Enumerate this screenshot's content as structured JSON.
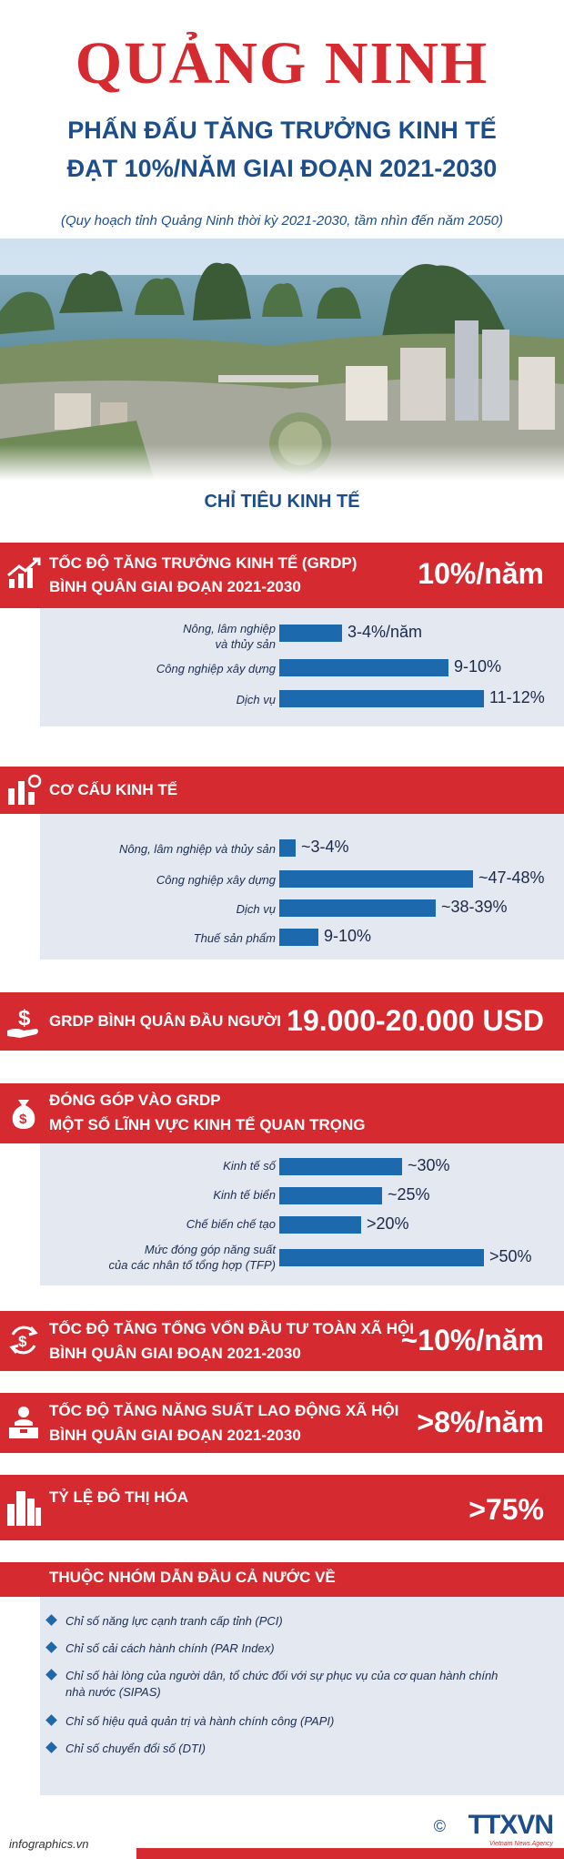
{
  "header": {
    "title": "QUẢNG NINH",
    "subtitle_line1": "PHẤN ĐẤU TĂNG TRƯỞNG KINH TẾ",
    "subtitle_line2": "ĐẠT 10%/NĂM GIAI ĐOẠN 2021-2030",
    "note": "(Quy hoạch tỉnh Quảng Ninh thời kỳ 2021-2030, tầm nhìn đến năm 2050)"
  },
  "section_title": "CHỈ TIÊU KINH TẾ",
  "grdp_growth": {
    "label_line1": "TỐC ĐỘ TĂNG TRƯỞNG KINH TẾ (GRDP)",
    "label_line2": "BÌNH QUÂN GIAI ĐOẠN 2021-2030",
    "value": "10%/năm",
    "icon": "growth-chart-icon",
    "rows": [
      {
        "label1": "Nông, lâm nghiệp",
        "label2": "và thủy sản",
        "value": "3-4%/năm",
        "level": 3.5
      },
      {
        "label1": "Công nghiệp xây dựng",
        "label2": "",
        "value": "9-10%",
        "level": 9.5
      },
      {
        "label1": "Dịch vụ",
        "label2": "",
        "value": "11-12%",
        "level": 11.5
      }
    ]
  },
  "structure": {
    "label": "CƠ CẤU KINH TẾ",
    "icon": "economy-structure-icon",
    "rows": [
      {
        "label": "Nông, lâm nghiệp và thủy sản",
        "value": "~3-4%",
        "level": 3.5
      },
      {
        "label": "Công nghiệp xây dựng",
        "value": "~47-48%",
        "level": 47.5
      },
      {
        "label": "Dịch vụ",
        "value": "~38-39%",
        "level": 38.5
      },
      {
        "label": "Thuế sản phẩm",
        "value": "9-10%",
        "level": 9.5
      }
    ]
  },
  "per_capita": {
    "label": "GRDP BÌNH QUÂN ĐẦU NGƯỜI",
    "value": "19.000-20.000 USD",
    "icon": "money-hand-icon"
  },
  "contribution": {
    "label_line1": "ĐÓNG GÓP VÀO GRDP",
    "label_line2": "MỘT SỐ LĨNH VỰC KINH TẾ QUAN TRỌNG",
    "icon": "money-bag-icon",
    "rows": [
      {
        "label1": "Kinh tế số",
        "label2": "",
        "value": "~30%",
        "level": 30
      },
      {
        "label1": "Kinh tế biển",
        "label2": "",
        "value": "~25%",
        "level": 25
      },
      {
        "label1": "Chế biến chế tạo",
        "label2": "",
        "value": ">20%",
        "level": 20
      },
      {
        "label1": "Mức đóng góp năng suất",
        "label2": "của các nhân tố tổng hợp (TFP)",
        "value": ">50%",
        "level": 50
      }
    ]
  },
  "investment": {
    "label_line1": "TỐC ĐỘ TĂNG TỔNG VỐN ĐẦU TƯ TOÀN XÃ HỘI",
    "label_line2": "BÌNH QUÂN GIAI ĐOẠN 2021-2030",
    "value": "~10%/năm",
    "icon": "dollar-cycle-icon"
  },
  "productivity": {
    "label_line1": "TỐC ĐỘ TĂNG NĂNG SUẤT LAO ĐỘNG XÃ HỘI",
    "label_line2": "BÌNH QUÂN GIAI ĐOẠN 2021-2030",
    "value": ">8%/năm",
    "icon": "worker-icon"
  },
  "urbanization": {
    "label": "TỶ LỆ ĐÔ THỊ HÓA",
    "value": ">75%",
    "icon": "city-icon"
  },
  "leading": {
    "title": "THUỘC NHÓM DẪN ĐẦU CẢ NƯỚC VỀ",
    "items": [
      {
        "line1": "Chỉ số năng lực cạnh tranh cấp tỉnh (PCI)",
        "line2": ""
      },
      {
        "line1": "Chỉ số cải cách hành chính (PAR Index)",
        "line2": ""
      },
      {
        "line1": "Chỉ số hài lòng của người dân, tổ chức đối với sự phục vụ của cơ quan hành chính",
        "line2": "nhà nước (SIPAS)"
      },
      {
        "line1": "Chỉ số hiệu quả quản trị và hành chính công (PAPI)",
        "line2": ""
      },
      {
        "line1": "Chỉ số chuyển đổi số (DTI)",
        "line2": ""
      }
    ]
  },
  "footer": {
    "site": "infographics.vn",
    "copyright": "©",
    "logo": "TTXVN",
    "slogan": "Vietnam News Agency"
  },
  "colors": {
    "red": "#d42a30",
    "blue": "#1c6aad",
    "navy": "#1c4e8c",
    "panel": "#e4e8f0"
  }
}
